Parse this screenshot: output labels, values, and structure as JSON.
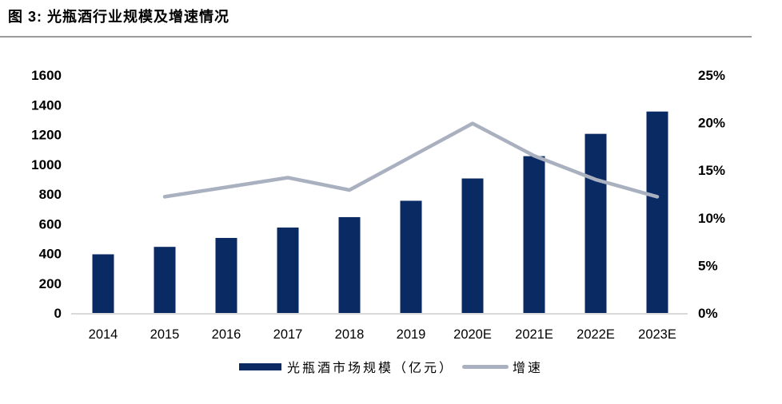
{
  "figure": {
    "title": "图 3:  光瓶酒行业规模及增速情况"
  },
  "chart_data": {
    "type": "combo",
    "title": "光瓶酒行业规模及增速情况",
    "categories": [
      "2014",
      "2015",
      "2016",
      "2017",
      "2018",
      "2019",
      "2020E",
      "2021E",
      "2022E",
      "2023E"
    ],
    "series": [
      {
        "name": "光瓶酒市场规模（亿元）",
        "type": "bar",
        "axis": "left",
        "color": "#0a2a64",
        "values": [
          400,
          450,
          510,
          580,
          650,
          760,
          910,
          1060,
          1210,
          1360
        ]
      },
      {
        "name": "增速",
        "type": "line",
        "axis": "right",
        "color": "#a9b0c0",
        "values": [
          null,
          12.3,
          13.3,
          14.3,
          13.0,
          16.5,
          20.0,
          16.6,
          14.1,
          12.3
        ]
      }
    ],
    "left_axis": {
      "min": 0,
      "max": 1600,
      "step": 200,
      "ticks": [
        "0",
        "200",
        "400",
        "600",
        "800",
        "1000",
        "1200",
        "1400",
        "1600"
      ]
    },
    "right_axis": {
      "min": 0,
      "max": 25,
      "step": 5,
      "ticks": [
        "0%",
        "5%",
        "10%",
        "15%",
        "20%",
        "25%"
      ]
    },
    "grid": false,
    "legend_position": "bottom"
  },
  "colors": {
    "axis_line": "#d9d9d9",
    "title_rule": "#9b9b9b",
    "text": "#000000",
    "background": "#ffffff"
  }
}
